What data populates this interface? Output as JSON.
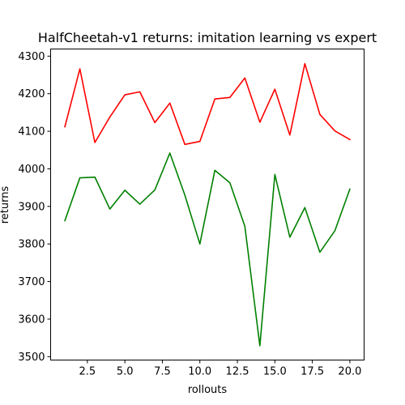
{
  "chart_data": {
    "type": "line",
    "title": "HalfCheetah-v1 returns: imitation learning vs expert",
    "xlabel": "rollouts",
    "ylabel": "returns",
    "xlim": [
      0.05,
      20.95
    ],
    "ylim": [
      3491,
      4319
    ],
    "xticks": [
      2.5,
      5.0,
      7.5,
      10.0,
      12.5,
      15.0,
      17.5,
      20.0
    ],
    "xtick_labels": [
      "2.5",
      "5.0",
      "7.5",
      "10.0",
      "12.5",
      "15.0",
      "17.5",
      "20.0"
    ],
    "yticks": [
      3500,
      3600,
      3700,
      3800,
      3900,
      4000,
      4100,
      4200,
      4300
    ],
    "ytick_labels": [
      "3500",
      "3600",
      "3700",
      "3800",
      "3900",
      "4000",
      "4100",
      "4200",
      "4300"
    ],
    "grid": false,
    "x": [
      1,
      2,
      3,
      4,
      5,
      6,
      7,
      8,
      9,
      10,
      11,
      12,
      13,
      14,
      15,
      16,
      17,
      18,
      19,
      20
    ],
    "series": [
      {
        "color": "#ff0000",
        "values": [
          4112,
          4266,
          4070,
          4138,
          4197,
          4205,
          4123,
          4175,
          4065,
          4073,
          4186,
          4190,
          4242,
          4124,
          4212,
          4090,
          4280,
          4145,
          4101,
          4078
        ]
      },
      {
        "color": "#008000",
        "values": [
          3862,
          3976,
          3978,
          3893,
          3943,
          3906,
          3944,
          4042,
          3930,
          3800,
          3996,
          3963,
          3847,
          3529,
          3985,
          3818,
          3897,
          3778,
          3835,
          3946
        ]
      }
    ]
  }
}
